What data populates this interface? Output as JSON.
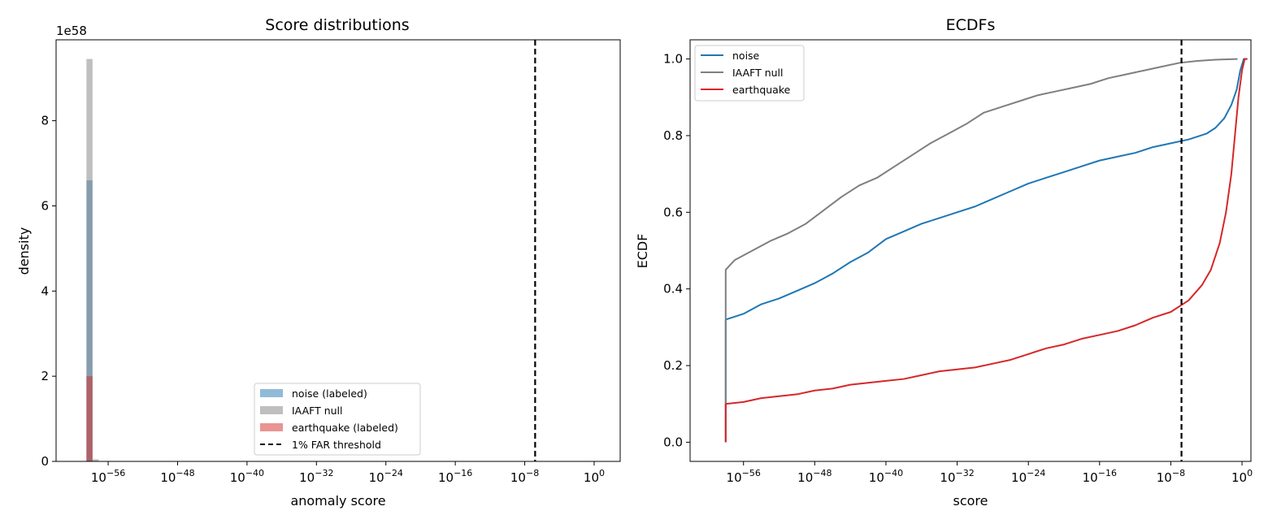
{
  "chart_data": [
    {
      "type": "histogram",
      "title": "Score distributions",
      "xlabel": "anomaly score",
      "ylabel": "density",
      "y_offset_text": "1e58",
      "x_scale": "log",
      "xlim_log10": [
        -62,
        3
      ],
      "ylim": [
        0,
        9.9
      ],
      "y_ticks": [
        0,
        2,
        4,
        6,
        8
      ],
      "x_tick_labels": [
        {
          "log10": -56,
          "base": "10",
          "exp": "−56"
        },
        {
          "log10": -48,
          "base": "10",
          "exp": "−48"
        },
        {
          "log10": -40,
          "base": "10",
          "exp": "−40"
        },
        {
          "log10": -32,
          "base": "10",
          "exp": "−32"
        },
        {
          "log10": -24,
          "base": "10",
          "exp": "−24"
        },
        {
          "log10": -16,
          "base": "10",
          "exp": "−16"
        },
        {
          "log10": -8,
          "base": "10",
          "exp": "−8"
        },
        {
          "log10": 0,
          "base": "10",
          "exp": "0"
        }
      ],
      "series": [
        {
          "name": "noise (labeled)",
          "color": "#1f77b4",
          "opacity": 0.5,
          "bins": [
            {
              "x0_log10": -58.5,
              "x1_log10": -57.8,
              "value": 6.6
            }
          ]
        },
        {
          "name": "IAAFT null",
          "color": "#7f7f7f",
          "opacity": 0.5,
          "bins": [
            {
              "x0_log10": -58.5,
              "x1_log10": -57.8,
              "value": 9.45
            },
            {
              "x0_log10": -57.8,
              "x1_log10": -57.1,
              "value": 0.05
            }
          ]
        },
        {
          "name": "earthquake (labeled)",
          "color": "#d62728",
          "opacity": 0.5,
          "bins": [
            {
              "x0_log10": -58.5,
              "x1_log10": -57.8,
              "value": 2.0
            }
          ]
        }
      ],
      "threshold": {
        "name": "1% FAR threshold",
        "x_log10": -6.8,
        "color": "#000000"
      },
      "legend": "lower center"
    },
    {
      "type": "line",
      "title": "ECDFs",
      "xlabel": "score",
      "ylabel": "ECDF",
      "x_scale": "log",
      "xlim_log10": [
        -62,
        1
      ],
      "ylim": [
        -0.05,
        1.05
      ],
      "y_tick_labels": [
        "0.0",
        "0.2",
        "0.4",
        "0.6",
        "0.8",
        "1.0"
      ],
      "y_ticks": [
        0,
        0.2,
        0.4,
        0.6,
        0.8,
        1.0
      ],
      "x_tick_labels": [
        {
          "log10": -56,
          "base": "10",
          "exp": "−56"
        },
        {
          "log10": -48,
          "base": "10",
          "exp": "−48"
        },
        {
          "log10": -40,
          "base": "10",
          "exp": "−40"
        },
        {
          "log10": -32,
          "base": "10",
          "exp": "−32"
        },
        {
          "log10": -24,
          "base": "10",
          "exp": "−24"
        },
        {
          "log10": -16,
          "base": "10",
          "exp": "−16"
        },
        {
          "log10": -8,
          "base": "10",
          "exp": "−8"
        },
        {
          "log10": 0,
          "base": "10",
          "exp": "0"
        }
      ],
      "series": [
        {
          "name": "noise",
          "color": "#1f77b4",
          "points": [
            [
              -58.0,
              0.0
            ],
            [
              -58.0,
              0.32
            ],
            [
              -56,
              0.335
            ],
            [
              -54,
              0.36
            ],
            [
              -52,
              0.375
            ],
            [
              -50,
              0.395
            ],
            [
              -48,
              0.415
            ],
            [
              -46,
              0.44
            ],
            [
              -44,
              0.47
            ],
            [
              -42,
              0.495
            ],
            [
              -40,
              0.53
            ],
            [
              -38,
              0.55
            ],
            [
              -36,
              0.57
            ],
            [
              -34,
              0.585
            ],
            [
              -32,
              0.6
            ],
            [
              -30,
              0.615
            ],
            [
              -28,
              0.635
            ],
            [
              -26,
              0.655
            ],
            [
              -24,
              0.675
            ],
            [
              -22,
              0.69
            ],
            [
              -20,
              0.705
            ],
            [
              -18,
              0.72
            ],
            [
              -16,
              0.735
            ],
            [
              -14,
              0.745
            ],
            [
              -12,
              0.755
            ],
            [
              -10,
              0.77
            ],
            [
              -8,
              0.78
            ],
            [
              -6,
              0.79
            ],
            [
              -4,
              0.805
            ],
            [
              -3,
              0.82
            ],
            [
              -2,
              0.845
            ],
            [
              -1.2,
              0.88
            ],
            [
              -0.6,
              0.92
            ],
            [
              -0.2,
              0.97
            ],
            [
              0.2,
              1.0
            ],
            [
              0.6,
              1.0
            ]
          ]
        },
        {
          "name": "IAAFT null",
          "color": "#7f7f7f",
          "points": [
            [
              -58.0,
              0.0
            ],
            [
              -58.0,
              0.45
            ],
            [
              -57,
              0.475
            ],
            [
              -55,
              0.5
            ],
            [
              -53,
              0.525
            ],
            [
              -51,
              0.545
            ],
            [
              -49,
              0.57
            ],
            [
              -47,
              0.605
            ],
            [
              -45,
              0.64
            ],
            [
              -43,
              0.67
            ],
            [
              -41,
              0.69
            ],
            [
              -39,
              0.72
            ],
            [
              -37,
              0.75
            ],
            [
              -35,
              0.78
            ],
            [
              -33,
              0.805
            ],
            [
              -31,
              0.83
            ],
            [
              -29,
              0.86
            ],
            [
              -27,
              0.875
            ],
            [
              -25,
              0.89
            ],
            [
              -23,
              0.905
            ],
            [
              -21,
              0.915
            ],
            [
              -19,
              0.925
            ],
            [
              -17,
              0.935
            ],
            [
              -15,
              0.95
            ],
            [
              -13,
              0.96
            ],
            [
              -11,
              0.97
            ],
            [
              -9,
              0.98
            ],
            [
              -7,
              0.99
            ],
            [
              -5,
              0.995
            ],
            [
              -3,
              0.998
            ],
            [
              -0.5,
              1.0
            ]
          ]
        },
        {
          "name": "earthquake",
          "color": "#d62728",
          "points": [
            [
              -58.0,
              0.0
            ],
            [
              -58.0,
              0.1
            ],
            [
              -56,
              0.105
            ],
            [
              -54,
              0.115
            ],
            [
              -52,
              0.12
            ],
            [
              -50,
              0.125
            ],
            [
              -48,
              0.135
            ],
            [
              -46,
              0.14
            ],
            [
              -44,
              0.15
            ],
            [
              -42,
              0.155
            ],
            [
              -40,
              0.16
            ],
            [
              -38,
              0.165
            ],
            [
              -36,
              0.175
            ],
            [
              -34,
              0.185
            ],
            [
              -32,
              0.19
            ],
            [
              -30,
              0.195
            ],
            [
              -28,
              0.205
            ],
            [
              -26,
              0.215
            ],
            [
              -24,
              0.23
            ],
            [
              -22,
              0.245
            ],
            [
              -20,
              0.255
            ],
            [
              -18,
              0.27
            ],
            [
              -16,
              0.28
            ],
            [
              -14,
              0.29
            ],
            [
              -12,
              0.305
            ],
            [
              -10,
              0.325
            ],
            [
              -8,
              0.34
            ],
            [
              -6,
              0.37
            ],
            [
              -4.5,
              0.41
            ],
            [
              -3.5,
              0.45
            ],
            [
              -2.5,
              0.52
            ],
            [
              -1.8,
              0.6
            ],
            [
              -1.2,
              0.7
            ],
            [
              -0.8,
              0.8
            ],
            [
              -0.4,
              0.9
            ],
            [
              0,
              0.97
            ],
            [
              0.3,
              1.0
            ],
            [
              0.6,
              1.0
            ]
          ]
        }
      ],
      "threshold": {
        "x_log10": -6.8,
        "color": "#000000"
      },
      "legend": "upper left"
    }
  ]
}
